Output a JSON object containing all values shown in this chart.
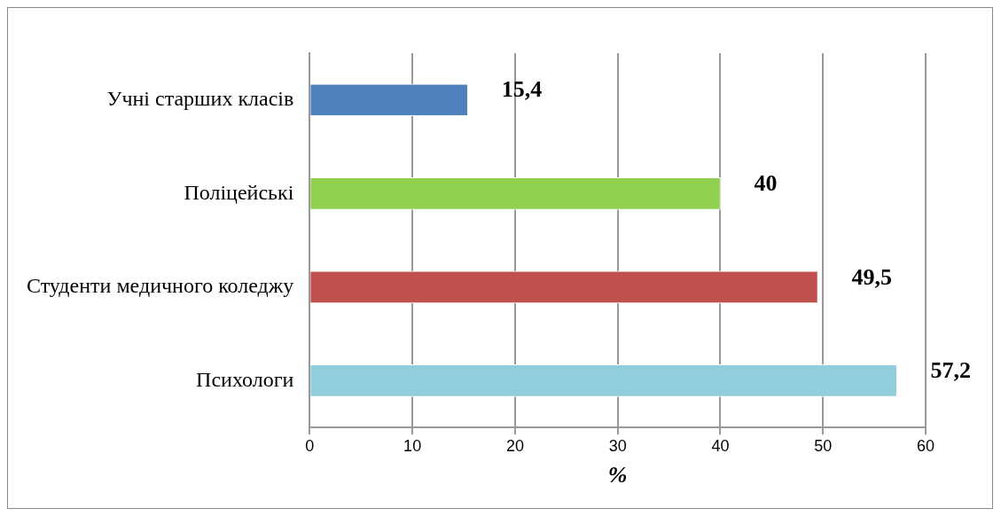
{
  "chart_data": {
    "type": "bar",
    "orientation": "horizontal",
    "xlabel": "%",
    "categories": [
      "Учні старших класів",
      "Поліцейські",
      "Студенти медичного коледжу",
      "Психологи"
    ],
    "values": [
      15.4,
      40,
      49.5,
      57.2
    ],
    "colors": [
      "#4f81bd",
      "#92d050",
      "#c0504d",
      "#92cddc"
    ],
    "value_labels": [
      "15,4",
      "40",
      "49,5",
      "57,2"
    ],
    "xlim": [
      0,
      60
    ],
    "xticks": [
      0,
      10,
      20,
      30,
      40,
      50,
      60
    ],
    "grid": "x",
    "legend": false
  }
}
